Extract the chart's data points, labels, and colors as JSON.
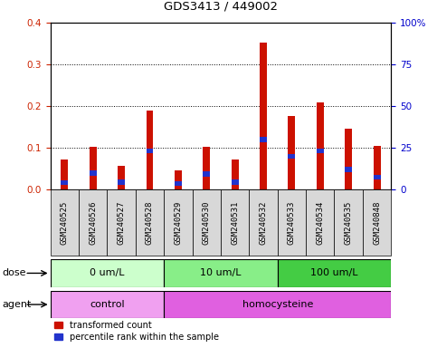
{
  "title": "GDS3413 / 449002",
  "samples": [
    "GSM240525",
    "GSM240526",
    "GSM240527",
    "GSM240528",
    "GSM240529",
    "GSM240530",
    "GSM240531",
    "GSM240532",
    "GSM240533",
    "GSM240534",
    "GSM240535",
    "GSM240848"
  ],
  "red_values": [
    0.072,
    0.103,
    0.058,
    0.19,
    0.047,
    0.103,
    0.072,
    0.352,
    0.177,
    0.21,
    0.145,
    0.105
  ],
  "blue_values": [
    0.017,
    0.04,
    0.018,
    0.093,
    0.015,
    0.038,
    0.018,
    0.12,
    0.08,
    0.093,
    0.048,
    0.03
  ],
  "left_yticks": [
    0,
    0.1,
    0.2,
    0.3,
    0.4
  ],
  "right_yticks": [
    0,
    25,
    50,
    75,
    100
  ],
  "left_ylim": [
    0,
    0.4
  ],
  "right_ylim": [
    0,
    100
  ],
  "left_ycolor": "#cc2200",
  "right_ycolor": "#0000cc",
  "bar_red": "#cc1100",
  "bar_blue": "#2233cc",
  "blue_bar_height": 0.012,
  "dose_groups": [
    {
      "label": "0 um/L",
      "start": 0,
      "end": 4,
      "color": "#ccffcc"
    },
    {
      "label": "10 um/L",
      "start": 4,
      "end": 8,
      "color": "#88ee88"
    },
    {
      "label": "100 um/L",
      "start": 8,
      "end": 12,
      "color": "#44cc44"
    }
  ],
  "agent_groups": [
    {
      "label": "control",
      "start": 0,
      "end": 4,
      "color": "#f0a0f0"
    },
    {
      "label": "homocysteine",
      "start": 4,
      "end": 12,
      "color": "#e060e0"
    }
  ],
  "legend_red": "transformed count",
  "legend_blue": "percentile rank within the sample",
  "dose_label": "dose",
  "agent_label": "agent",
  "bar_width": 0.25,
  "label_bg_color": "#d8d8d8"
}
